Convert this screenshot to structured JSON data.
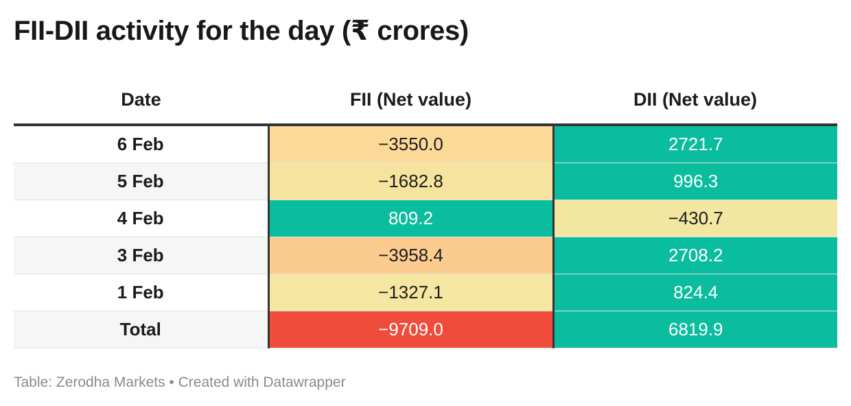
{
  "title": "FII-DII activity for the day (₹ crores)",
  "footer": "Table: Zerodha Markets • Created with Datawrapper",
  "chart_data": {
    "type": "table",
    "title": "FII-DII activity for the day (₹ crores)",
    "columns": [
      "Date",
      "FII (Net value)",
      "DII (Net value)"
    ],
    "rows": [
      {
        "date": "6 Feb",
        "fii": "−3550.0",
        "dii": "2721.7",
        "fii_value": -3550.0,
        "dii_value": 2721.7,
        "fii_bg": "#fcd996",
        "fii_fg": "#1d1d1d",
        "dii_bg": "#0bbd9f",
        "dii_fg": "#ffffff"
      },
      {
        "date": "5 Feb",
        "fii": "−1682.8",
        "dii": "996.3",
        "fii_value": -1682.8,
        "dii_value": 996.3,
        "fii_bg": "#f6e49e",
        "fii_fg": "#1d1d1d",
        "dii_bg": "#0bbd9f",
        "dii_fg": "#ffffff"
      },
      {
        "date": "4 Feb",
        "fii": "809.2",
        "dii": "−430.7",
        "fii_value": 809.2,
        "dii_value": -430.7,
        "fii_bg": "#0bbd9f",
        "fii_fg": "#ffffff",
        "dii_bg": "#f3e6a0",
        "dii_fg": "#1d1d1d"
      },
      {
        "date": "3 Feb",
        "fii": "−3958.4",
        "dii": "2708.2",
        "fii_value": -3958.4,
        "dii_value": 2708.2,
        "fii_bg": "#fccb8e",
        "fii_fg": "#1d1d1d",
        "dii_bg": "#0bbd9f",
        "dii_fg": "#ffffff"
      },
      {
        "date": "1 Feb",
        "fii": "−1327.1",
        "dii": "824.4",
        "fii_value": -1327.1,
        "dii_value": 824.4,
        "fii_bg": "#f5e6a1",
        "fii_fg": "#1d1d1d",
        "dii_bg": "#0bbd9f",
        "dii_fg": "#ffffff"
      },
      {
        "date": "Total",
        "fii": "−9709.0",
        "dii": "6819.9",
        "fii_value": -9709.0,
        "dii_value": 6819.9,
        "fii_bg": "#ef4c3c",
        "fii_fg": "#ffffff",
        "dii_bg": "#0bbd9f",
        "dii_fg": "#ffffff"
      }
    ]
  }
}
